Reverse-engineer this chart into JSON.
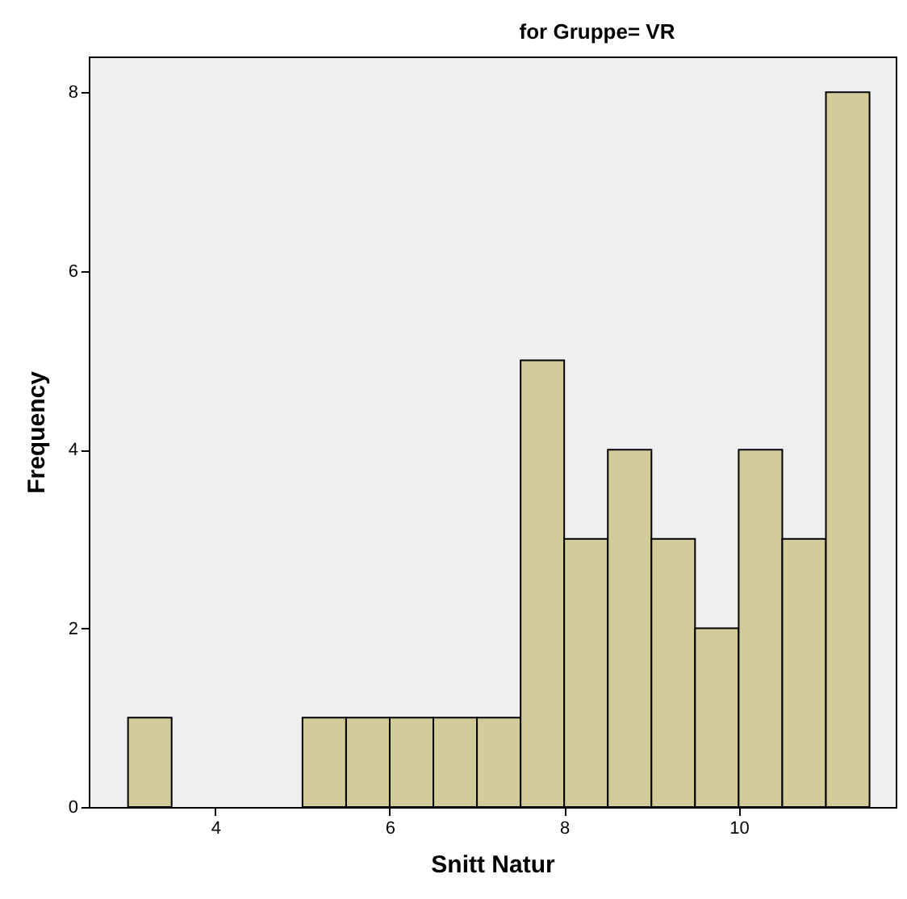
{
  "chart_data": {
    "type": "histogram",
    "title": "for Gruppe= VR",
    "xlabel": "Snitt Natur",
    "ylabel": "Frequency",
    "bins": [
      3,
      3.5,
      4,
      4.5,
      5,
      5.5,
      6,
      6.5,
      7,
      7.5,
      8,
      8.5,
      9,
      9.5,
      10,
      10.5,
      11,
      11.5
    ],
    "values": [
      1,
      0,
      0,
      0,
      1,
      1,
      1,
      1,
      1,
      5,
      3,
      4,
      3,
      2,
      4,
      3,
      8
    ],
    "color": "#d3cc9a",
    "xlim": [
      2.55,
      11.8
    ],
    "xticks": [
      4,
      6,
      8,
      10
    ],
    "ylim": [
      0,
      8.4
    ],
    "yticks": [
      0,
      2,
      4,
      6,
      8
    ],
    "grid": false
  }
}
